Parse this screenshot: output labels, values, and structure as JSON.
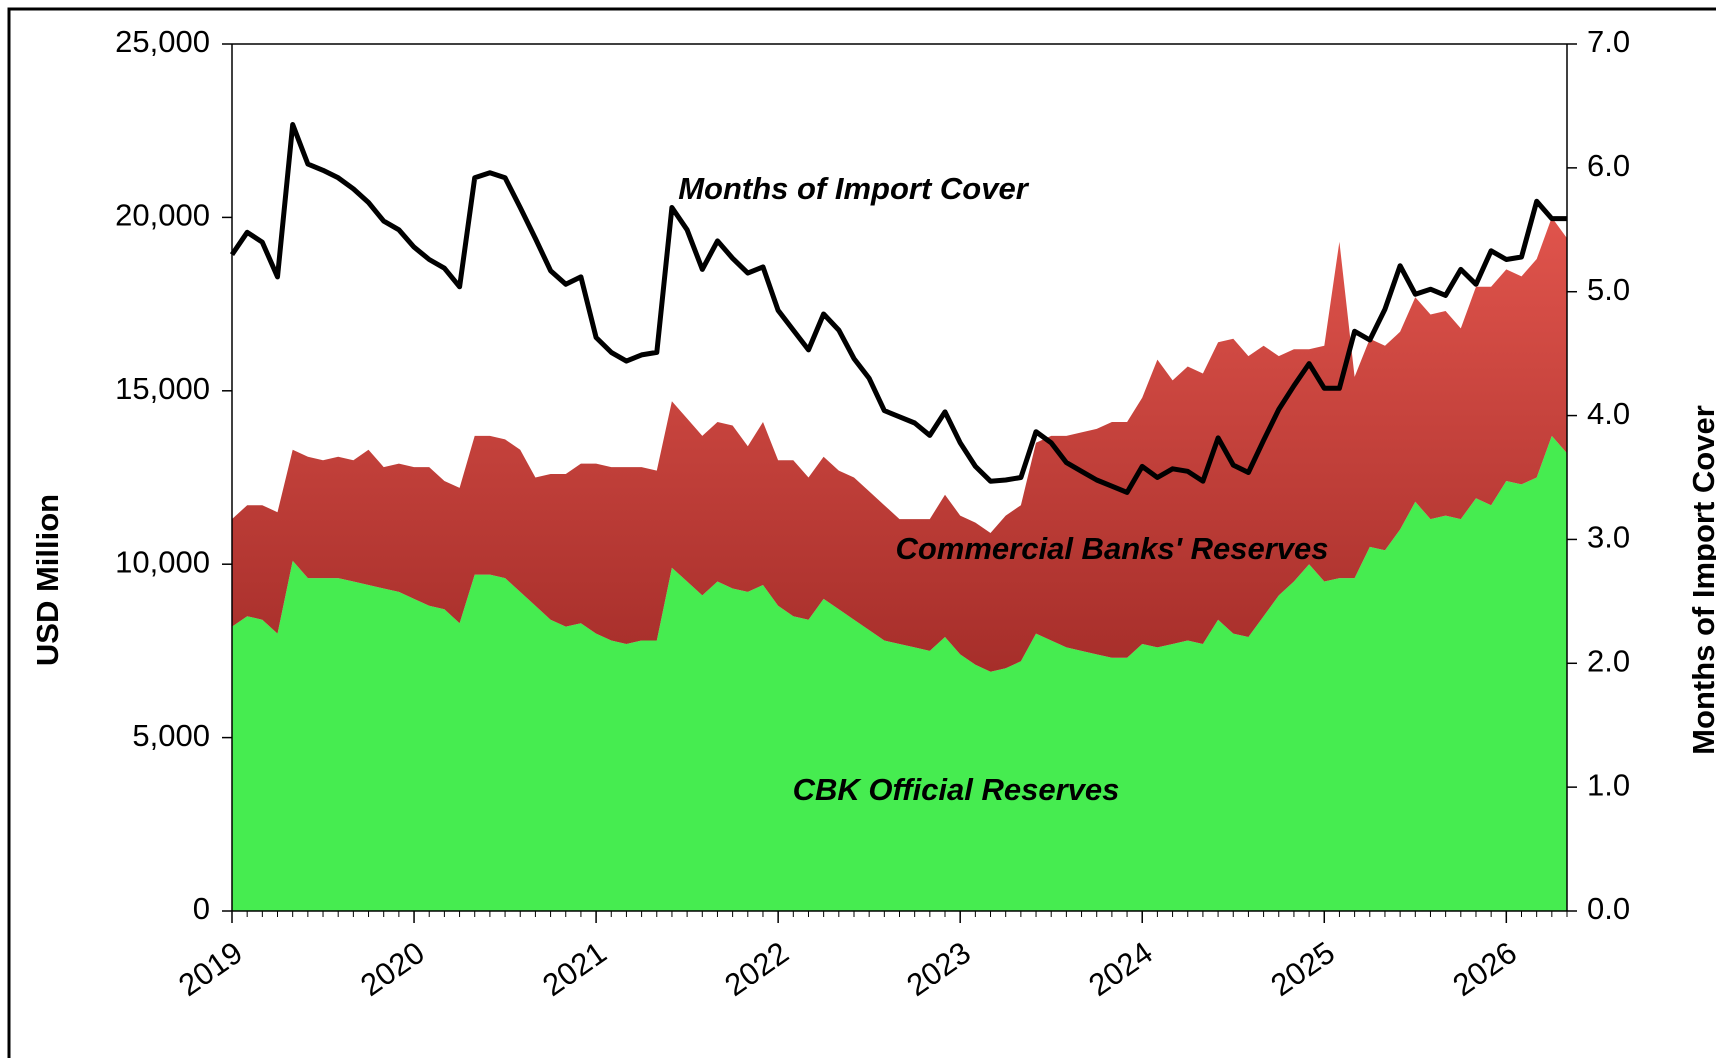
{
  "chart_data": {
    "type": "stacked_area_line",
    "x": [
      0,
      1,
      2,
      3,
      4,
      5,
      6,
      7,
      8,
      9,
      10,
      11,
      12,
      13,
      14,
      15,
      16,
      17,
      18,
      19,
      20,
      21,
      22,
      23,
      24,
      25,
      26,
      27,
      28,
      29,
      30,
      31,
      32,
      33,
      34,
      35,
      36,
      37,
      38,
      39,
      40,
      41,
      42,
      43,
      44,
      45,
      46,
      47,
      48,
      49,
      50,
      51,
      52,
      53,
      54,
      55,
      56,
      57,
      58,
      59,
      60,
      61,
      62,
      63,
      64,
      65,
      66,
      67,
      68,
      69,
      70,
      71,
      72,
      73,
      74,
      75,
      76,
      77,
      78,
      79,
      80,
      81,
      82,
      83,
      84,
      85,
      86,
      87,
      88
    ],
    "xlim": [
      0,
      88
    ],
    "xticks": [
      {
        "value": 0,
        "label": "2019"
      },
      {
        "value": 12,
        "label": "2020"
      },
      {
        "value": 24,
        "label": "2021"
      },
      {
        "value": 36,
        "label": "2022"
      },
      {
        "value": 48,
        "label": "2023"
      },
      {
        "value": 60,
        "label": "2024"
      },
      {
        "value": 72,
        "label": "2025"
      },
      {
        "value": 84,
        "label": "2026"
      }
    ],
    "y_label": "USD Million",
    "y2_label": "Months of Import Cover",
    "ylim": [
      0,
      25000
    ],
    "yticks": [
      0,
      {
        "value": 5000,
        "label": "5,000"
      },
      {
        "value": 10000,
        "label": "10,000"
      },
      {
        "value": 15000,
        "label": "15,000"
      },
      {
        "value": 20000,
        "label": "20,000"
      },
      {
        "value": 25000,
        "label": "25,000"
      }
    ],
    "y2lim": [
      0,
      7
    ],
    "y2ticks": [
      {
        "value": 0,
        "label": "0.0"
      },
      {
        "value": 1,
        "label": "1.0"
      },
      {
        "value": 2,
        "label": "2.0"
      },
      {
        "value": 3,
        "label": "3.0"
      },
      {
        "value": 4,
        "label": "4.0"
      },
      {
        "value": 5,
        "label": "5.0"
      },
      {
        "value": 6,
        "label": "6.0"
      },
      {
        "value": 7,
        "label": "7.0"
      }
    ],
    "series": [
      {
        "name": "CBK Official Reserves",
        "color": "#46ec50",
        "kind": "area",
        "values": [
          8200,
          8500,
          8400,
          8000,
          10100,
          9600,
          9600,
          9600,
          9500,
          9400,
          9300,
          9200,
          9000,
          8800,
          8700,
          8300,
          9700,
          9700,
          9600,
          9200,
          8800,
          8400,
          8200,
          8300,
          8000,
          7800,
          7700,
          7800,
          7800,
          9900,
          9500,
          9100,
          9500,
          9300,
          9200,
          9400,
          8800,
          8500,
          8400,
          9000,
          8700,
          8400,
          8100,
          7800,
          7700,
          7600,
          7500,
          7900,
          7400,
          7100,
          6900,
          7000,
          7200,
          8000,
          7800,
          7600,
          7500,
          7400,
          7300,
          7300,
          7700,
          7600,
          7700,
          7800,
          7700,
          8400,
          8000,
          7900,
          8500,
          9100,
          9500,
          10000,
          9500,
          9600,
          9600,
          10500,
          10400,
          11000,
          11800,
          11300,
          11400,
          11300,
          11900,
          11700,
          12400,
          12300,
          12500,
          13700,
          13200
        ]
      },
      {
        "name": "Commercial Banks' Reserves",
        "color": "#c43a34",
        "kind": "area",
        "values": [
          3100,
          3200,
          3300,
          3500,
          3200,
          3500,
          3400,
          3500,
          3500,
          3900,
          3500,
          3700,
          3800,
          4000,
          3700,
          3900,
          4000,
          4000,
          4000,
          4100,
          3700,
          4200,
          4400,
          4600,
          4900,
          5000,
          5100,
          5000,
          4900,
          4800,
          4700,
          4600,
          4600,
          4700,
          4200,
          4700,
          4200,
          4500,
          4100,
          4100,
          4000,
          4100,
          4000,
          3900,
          3600,
          3700,
          3800,
          4100,
          4000,
          4100,
          4000,
          4400,
          4500,
          5500,
          5900,
          6100,
          6300,
          6500,
          6800,
          6800,
          7100,
          8300,
          7600,
          7900,
          7800,
          8000,
          8500,
          8100,
          7800,
          6900,
          6700,
          6200,
          6800,
          9700,
          5800,
          6000,
          5900,
          5700,
          5900,
          5900,
          5900,
          5500,
          6100,
          6300,
          6100,
          6000,
          6300,
          6300,
          6200
        ]
      },
      {
        "name": "Months of Import Cover",
        "color": "#000000",
        "kind": "line",
        "axis": "y2",
        "values": [
          5.3,
          5.48,
          5.4,
          5.12,
          6.35,
          6.03,
          5.98,
          5.92,
          5.83,
          5.72,
          5.57,
          5.5,
          5.36,
          5.26,
          5.19,
          5.04,
          5.92,
          5.96,
          5.92,
          5.68,
          5.43,
          5.17,
          5.06,
          5.12,
          4.63,
          4.51,
          4.44,
          4.49,
          4.51,
          5.68,
          5.5,
          5.18,
          5.41,
          5.27,
          5.15,
          5.2,
          4.85,
          4.69,
          4.53,
          4.82,
          4.69,
          4.46,
          4.3,
          4.04,
          3.99,
          3.94,
          3.84,
          4.03,
          3.78,
          3.59,
          3.47,
          3.48,
          3.5,
          3.87,
          3.78,
          3.62,
          3.55,
          3.48,
          3.43,
          3.38,
          3.59,
          3.5,
          3.57,
          3.55,
          3.47,
          3.82,
          3.6,
          3.54,
          3.8,
          4.05,
          4.24,
          4.42,
          4.22,
          4.22,
          4.68,
          4.61,
          4.86,
          5.21,
          4.98,
          5.02,
          4.97,
          5.18,
          5.06,
          5.33,
          5.26,
          5.28,
          5.73,
          5.59,
          5.59
        ]
      }
    ]
  }
}
